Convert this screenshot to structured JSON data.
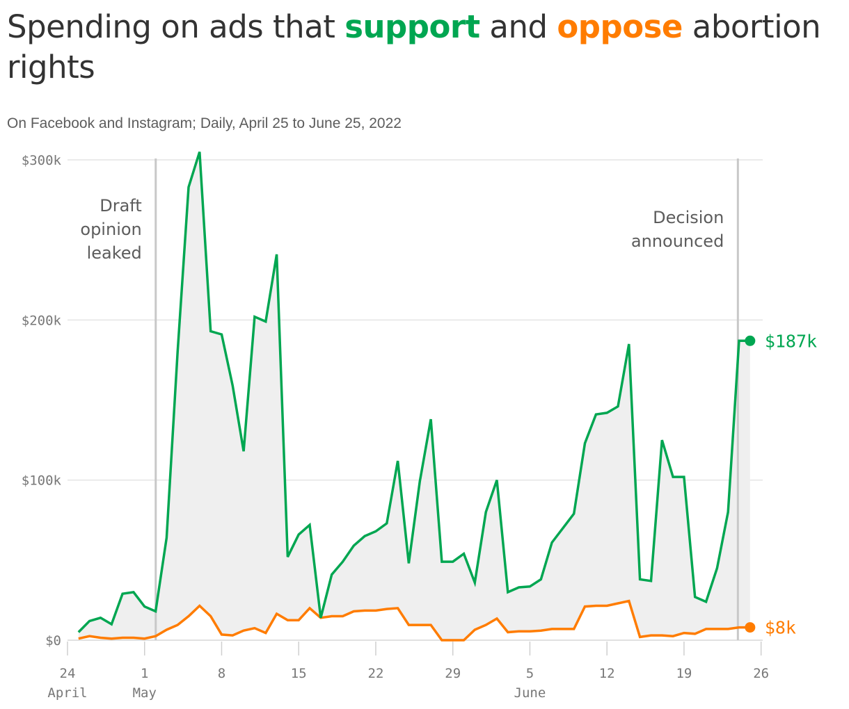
{
  "title": {
    "prefix": "Spending on ads that ",
    "support_word": "support",
    "middle": " and ",
    "oppose_word": "oppose",
    "suffix": " abortion rights"
  },
  "subtitle": "On Facebook and Instagram; Daily, April 25 to June 25, 2022",
  "colors": {
    "support": "#00a651",
    "oppose": "#ff7c00",
    "area": "#efefef",
    "grid": "#dddddd",
    "event_line": "#c8c8c8",
    "axis_text": "#777777",
    "annotation_text": "#5c5c5c"
  },
  "chart_data": {
    "type": "line",
    "x_start_date": "2022-04-25",
    "x_end_date": "2022-06-25",
    "ylim": [
      0,
      300000
    ],
    "yticks": [
      {
        "value": 0,
        "label": "$0"
      },
      {
        "value": 100000,
        "label": "$100k"
      },
      {
        "value": 200000,
        "label": "$200k"
      },
      {
        "value": 300000,
        "label": "$300k"
      }
    ],
    "xticks": [
      {
        "date": "2022-04-24",
        "label": "24",
        "sublabel": "April"
      },
      {
        "date": "2022-05-01",
        "label": "1",
        "sublabel": "May"
      },
      {
        "date": "2022-05-08",
        "label": "8",
        "sublabel": ""
      },
      {
        "date": "2022-05-15",
        "label": "15",
        "sublabel": ""
      },
      {
        "date": "2022-05-22",
        "label": "22",
        "sublabel": ""
      },
      {
        "date": "2022-05-29",
        "label": "29",
        "sublabel": ""
      },
      {
        "date": "2022-06-05",
        "label": "5",
        "sublabel": "June"
      },
      {
        "date": "2022-06-12",
        "label": "12",
        "sublabel": ""
      },
      {
        "date": "2022-06-19",
        "label": "19",
        "sublabel": ""
      },
      {
        "date": "2022-06-26",
        "label": "26",
        "sublabel": ""
      }
    ],
    "annotations": [
      {
        "date": "2022-05-02",
        "lines": [
          "Draft",
          "opinion",
          "leaked"
        ]
      },
      {
        "date": "2022-06-24",
        "lines": [
          "Decision",
          "announced"
        ]
      }
    ],
    "series": [
      {
        "name": "support",
        "end_label": "$187k",
        "values": [
          5000,
          12000,
          14000,
          10000,
          29000,
          30000,
          21000,
          18000,
          64000,
          180000,
          283000,
          305000,
          193000,
          191000,
          159000,
          118000,
          202000,
          199000,
          241000,
          52000,
          66000,
          72000,
          14000,
          41000,
          49000,
          59000,
          65000,
          68000,
          73000,
          112000,
          48000,
          99000,
          138000,
          49000,
          49000,
          54000,
          36000,
          80000,
          100000,
          30000,
          33000,
          33500,
          38000,
          61000,
          70000,
          79000,
          123000,
          141000,
          142000,
          146000,
          185000,
          38000,
          37000,
          125000,
          102000,
          102000,
          27000,
          24000,
          45000,
          80000,
          187000,
          187000
        ]
      },
      {
        "name": "oppose",
        "end_label": "$8k",
        "values": [
          1000,
          2500,
          1500,
          1000,
          1500,
          1500,
          1000,
          2500,
          6500,
          9500,
          15000,
          21500,
          15000,
          3500,
          3000,
          6000,
          7500,
          4500,
          16500,
          12500,
          12500,
          20000,
          14000,
          15000,
          15000,
          18000,
          18500,
          18500,
          19500,
          20000,
          9500,
          9500,
          9500,
          0,
          0,
          0,
          6500,
          9500,
          13500,
          5000,
          5500,
          5500,
          6000,
          7000,
          7000,
          7000,
          21000,
          21500,
          21500,
          23000,
          24500,
          2000,
          3000,
          3000,
          2500,
          4500,
          4000,
          7000,
          7000,
          7000,
          8000,
          8000
        ]
      }
    ]
  }
}
